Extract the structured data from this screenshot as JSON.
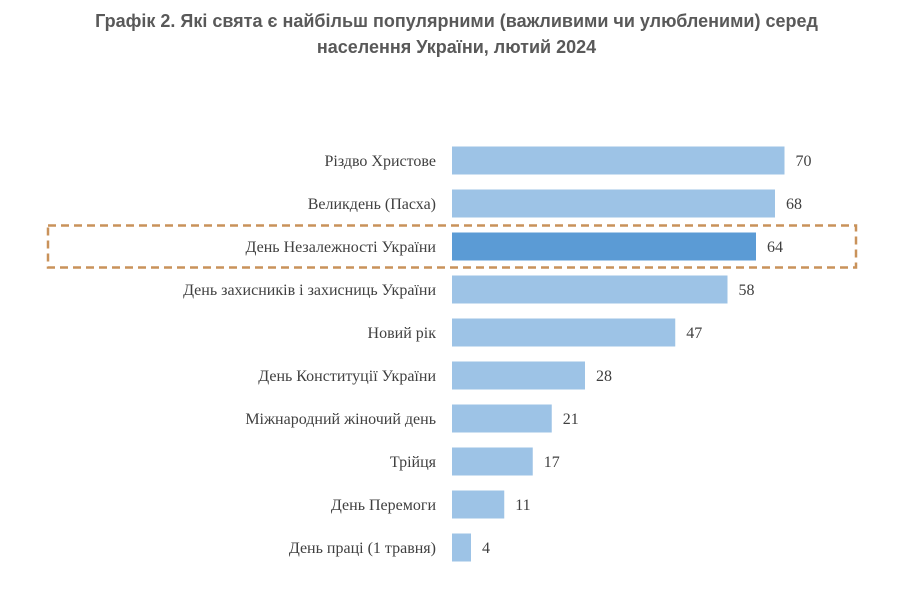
{
  "chart_data": {
    "type": "bar",
    "orientation": "horizontal",
    "title": "Графік 2.  Які свята є найбільш популярними (важливими чи улюбленими) серед населення України, лютий 2024",
    "title_lines": [
      "Графік 2.  Які свята є найбільш популярними (важливими чи улюбленими) серед",
      "населення України, лютий 2024"
    ],
    "categories": [
      "Різдво Христове",
      "Великдень (Пасха)",
      "День Незалежності України",
      "День захисників і захисниць України",
      "Новий рік",
      "День Конституції України",
      "Міжнародний жіночий день",
      "Трійця",
      "День Перемоги",
      "День праці (1 травня)"
    ],
    "values": [
      70,
      68,
      64,
      58,
      47,
      28,
      21,
      17,
      11,
      4
    ],
    "highlighted_category": "День Незалежності України",
    "xlim": [
      0,
      70
    ],
    "grid": false,
    "colors": {
      "bar": "#9DC3E6",
      "highlight_bar": "#5B9BD5",
      "highlight_box": "#C9925A",
      "title": "#595959",
      "text": "#404040"
    }
  }
}
